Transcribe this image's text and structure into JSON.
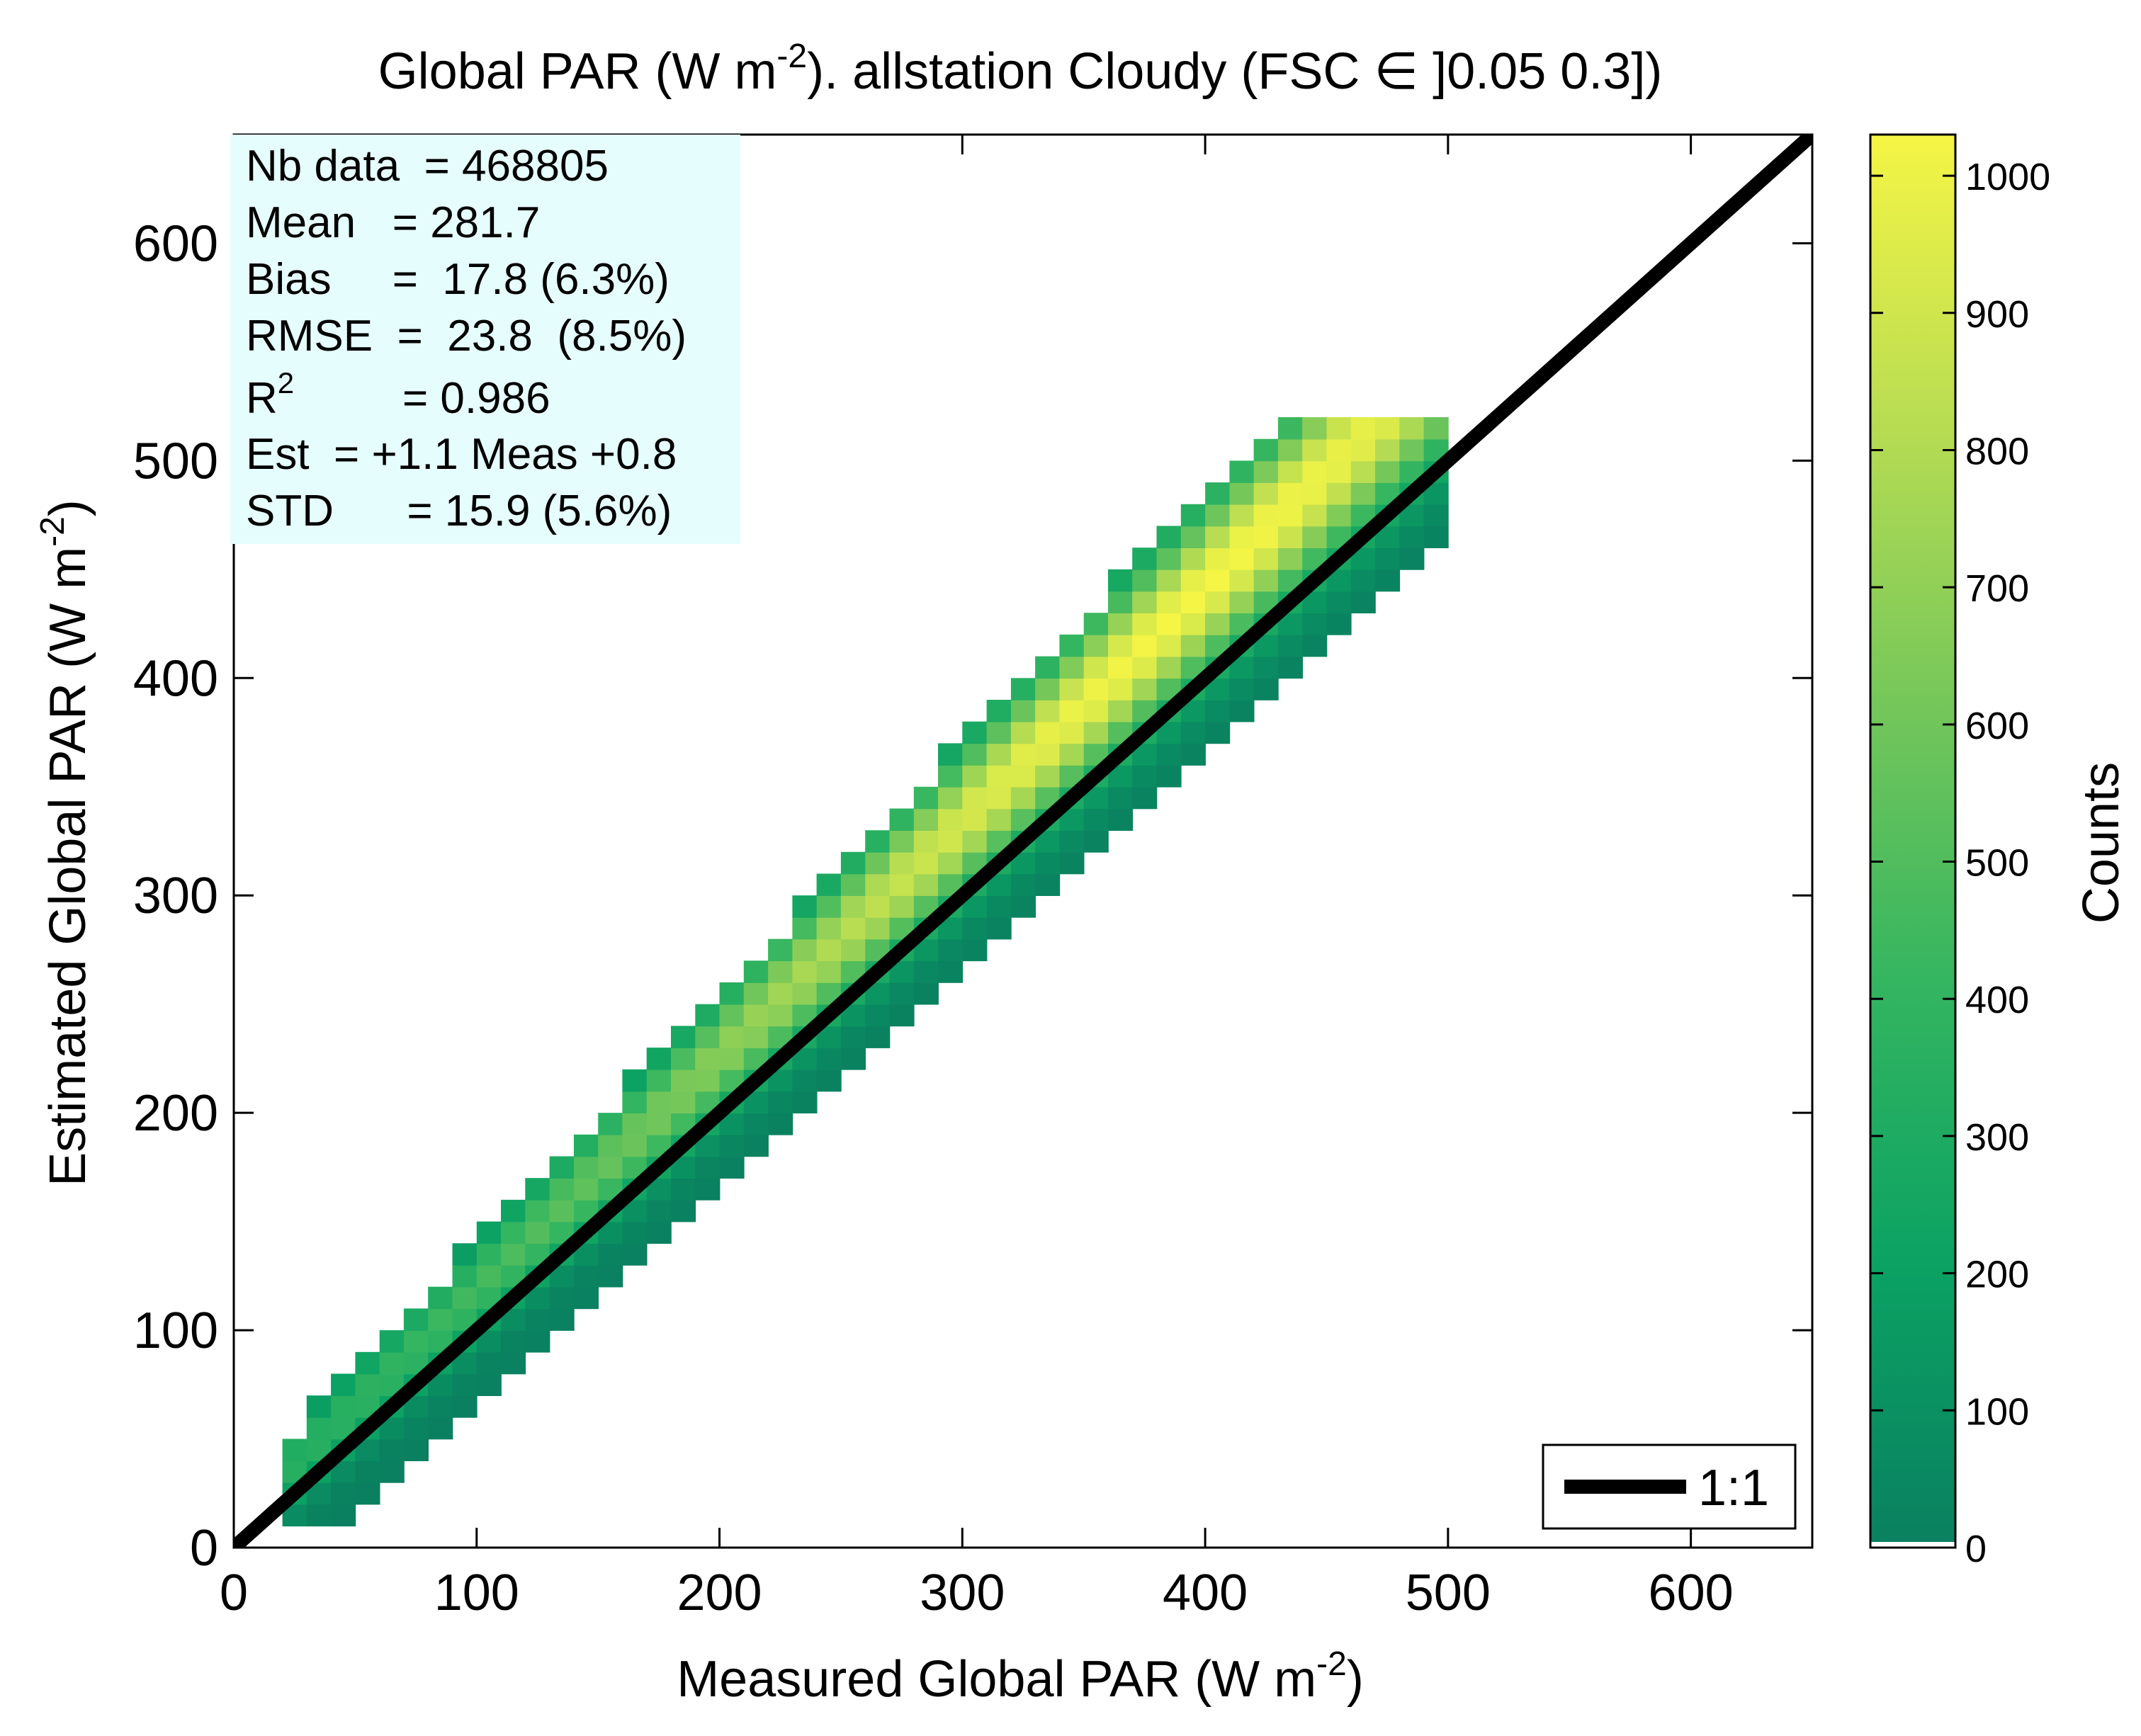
{
  "chart_data": {
    "type": "heatmap",
    "title": {
      "prefix": "Global PAR (W m",
      "sup": "-2",
      "suffix": "). allstation  Cloudy (FSC ",
      "symbol": "∈",
      "tail": " ]0.05 0.3])"
    },
    "xlabel": {
      "main": "Measured Global PAR (W m",
      "sup": "-2",
      "end": ")"
    },
    "ylabel": {
      "main": "Estimated Global PAR (W m",
      "sup": "-2",
      "end": ")"
    },
    "xlim": [
      0,
      650
    ],
    "ylim": [
      0,
      650
    ],
    "xticks": [
      "0",
      "100",
      "200",
      "300",
      "400",
      "500",
      "600"
    ],
    "yticks": [
      "0",
      "100",
      "200",
      "300",
      "400",
      "500",
      "600"
    ],
    "density": {
      "cell_size": 10,
      "upper_offset_a": 25,
      "upper_offset_b": 0.05,
      "lower_offset_a": 15,
      "lower_offset_b": 0.1,
      "x_min": 20,
      "x_max": 500,
      "y_min": 15,
      "y_max": 518,
      "fit_slope": 1.1,
      "fit_intercept": 0.8,
      "peak_x": 400,
      "max_count": 1030
    },
    "reference_line": {
      "label": "1:1",
      "slope": 1,
      "intercept": 0
    },
    "stats": {
      "nb_data": "Nb data  = 468805",
      "mean": "Mean   = 281.7",
      "bias": "Bias     =  17.8 (6.3%)",
      "rmse": "RMSE  =  23.8  (8.5%)",
      "r2_base": "R",
      "r2_sup": "2",
      "r2_value": "=  0.986",
      "est": "Est  = +1.1 Meas +0.8",
      "std": "STD      = 15.9 (5.6%)"
    },
    "colorbar": {
      "label": "Counts",
      "ticks": [
        "0",
        "100",
        "200",
        "300",
        "400",
        "500",
        "600",
        "700",
        "800",
        "900",
        "1000"
      ],
      "range": [
        0,
        1030
      ],
      "colors": [
        "#0a8060",
        "#0ba263",
        "#34b560",
        "#76c75a",
        "#b9dd52",
        "#f5f545"
      ]
    },
    "legend": {
      "position": "bottom-right",
      "entry": "1:1"
    }
  }
}
